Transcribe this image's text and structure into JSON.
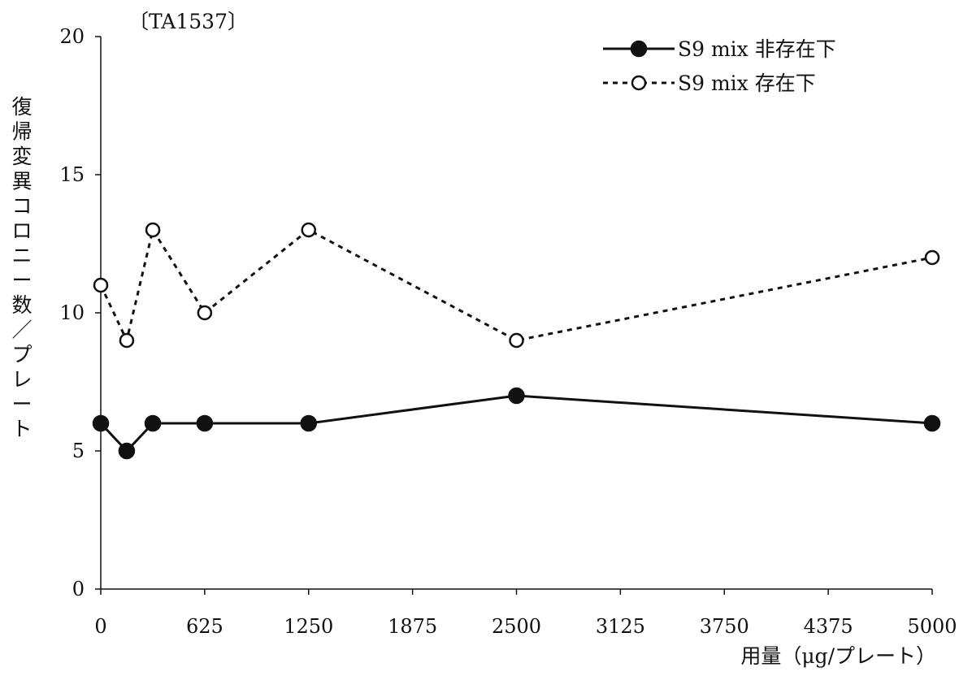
{
  "chart_data": {
    "type": "line",
    "title": "〔TA1537〕",
    "xlabel": "用量（μg/プレート）",
    "ylabel": "復帰変異コロニー数／プレート",
    "xlim": [
      0,
      5000
    ],
    "ylim": [
      0,
      20
    ],
    "x_ticks": [
      0,
      625,
      1250,
      1875,
      2500,
      3125,
      3750,
      4375,
      5000
    ],
    "y_ticks": [
      0,
      5,
      10,
      15,
      20
    ],
    "grid": false,
    "legend_position": "top-right",
    "series": [
      {
        "name": "S9 mix 非存在下",
        "marker": "filled-circle",
        "line_style": "solid",
        "x": [
          0,
          156,
          313,
          625,
          1250,
          2500,
          5000
        ],
        "y": [
          6,
          5,
          6,
          6,
          6,
          7,
          6
        ]
      },
      {
        "name": "S9 mix 存在下",
        "marker": "open-circle",
        "line_style": "dotted",
        "x": [
          0,
          156,
          313,
          625,
          1250,
          2500,
          5000
        ],
        "y": [
          11,
          9,
          13,
          10,
          13,
          9,
          12
        ]
      }
    ]
  }
}
